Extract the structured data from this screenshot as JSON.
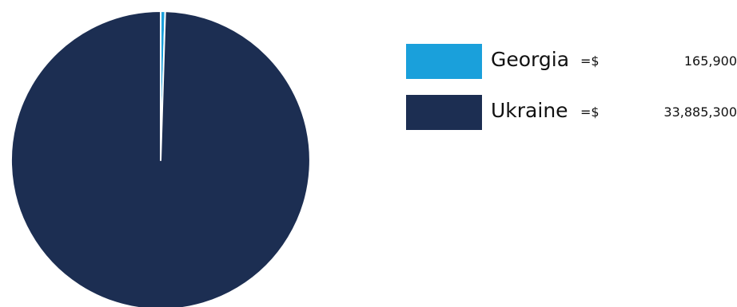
{
  "chart_data": {
    "type": "pie",
    "title": "",
    "categories": [
      "Georgia",
      "Ukraine"
    ],
    "values": [
      165900,
      33885300
    ],
    "colors": [
      "#1aa0db",
      "#1c2e52"
    ],
    "legend_placement": "right",
    "legend": [
      {
        "name": "Georgia",
        "prefix": "=$",
        "amount": "165,900"
      },
      {
        "name": "Ukraine",
        "prefix": "=$",
        "amount": "33,885,300"
      }
    ]
  }
}
